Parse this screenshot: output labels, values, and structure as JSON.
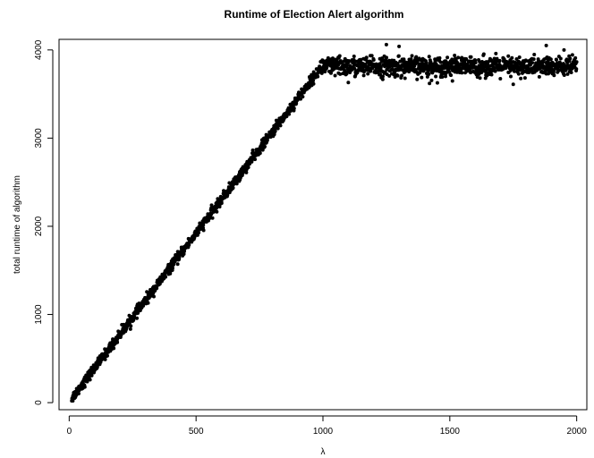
{
  "chart_data": {
    "type": "scatter",
    "title": "Runtime of Election Alert algorithm",
    "xlabel": "λ",
    "ylabel": "total runtime of algorithm",
    "xlim": [
      -40,
      2040
    ],
    "ylim": [
      -80,
      4120
    ],
    "xticks": [
      0,
      500,
      1000,
      1500,
      2000
    ],
    "yticks": [
      0,
      1000,
      2000,
      3000,
      4000
    ],
    "grid": false,
    "point_color": "#000000",
    "series": [
      {
        "description_points": [
          [
            10,
            40
          ],
          [
            50,
            180
          ],
          [
            100,
            380
          ],
          [
            150,
            580
          ],
          [
            200,
            770
          ],
          [
            250,
            960
          ],
          [
            300,
            1150
          ],
          [
            350,
            1340
          ],
          [
            400,
            1530
          ],
          [
            450,
            1720
          ],
          [
            500,
            1910
          ],
          [
            550,
            2090
          ],
          [
            600,
            2280
          ],
          [
            650,
            2470
          ],
          [
            700,
            2660
          ],
          [
            750,
            2850
          ],
          [
            800,
            3040
          ],
          [
            850,
            3230
          ],
          [
            900,
            3420
          ],
          [
            950,
            3610
          ],
          [
            980,
            3730
          ],
          [
            1000,
            3800
          ],
          [
            1100,
            3810
          ],
          [
            1200,
            3815
          ],
          [
            1300,
            3810
          ],
          [
            1400,
            3800
          ],
          [
            1500,
            3810
          ],
          [
            1600,
            3805
          ],
          [
            1700,
            3810
          ],
          [
            1800,
            3800
          ],
          [
            1900,
            3805
          ],
          [
            2000,
            3810
          ]
        ],
        "n_points": 2000,
        "x_range": [
          10,
          2000
        ],
        "linear_segment": {
          "x_end": 990,
          "slope": 3.82,
          "intercept": 10,
          "noise_sd": 28
        },
        "plateau_segment": {
          "x_start": 990,
          "level": 3810,
          "noise_sd": 55
        },
        "notable_outliers": [
          [
            1250,
            4060
          ],
          [
            1300,
            4040
          ],
          [
            1880,
            4050
          ],
          [
            1950,
            4000
          ],
          [
            1100,
            3630
          ],
          [
            1420,
            3620
          ],
          [
            1750,
            3610
          ]
        ]
      }
    ]
  }
}
